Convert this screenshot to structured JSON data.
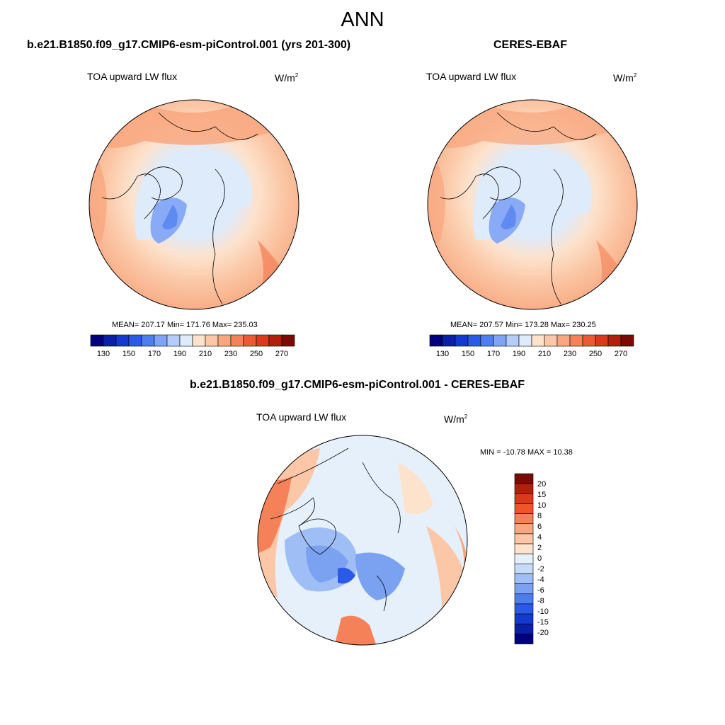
{
  "title": "ANN",
  "panels": [
    {
      "title": "b.e21.B1850.f09_g17.CMIP6-esm-piControl.001 (yrs 201-300)",
      "variable": "TOA upward LW flux",
      "units_base": "W/m",
      "units_exp": "2",
      "stats": "MEAN= 207.17  Min= 171.76  Max= 235.03"
    },
    {
      "title": "CERES-EBAF",
      "variable": "TOA upward LW flux",
      "units_base": "W/m",
      "units_exp": "2",
      "stats": "MEAN= 207.57  Min= 173.28  Max= 230.25"
    }
  ],
  "diff": {
    "title": "b.e21.B1850.f09_g17.CMIP6-esm-piControl.001 - CERES-EBAF",
    "variable": "TOA upward LW flux",
    "units_base": "W/m",
    "units_exp": "2",
    "stats": "MIN = -10.78 MAX =  10.38"
  },
  "colorbar_abs": {
    "colors": [
      "#00007f",
      "#0a1fa8",
      "#1439d1",
      "#2a5ae8",
      "#4d7ef0",
      "#7fa3f5",
      "#b4cdf8",
      "#deebfb",
      "#fde2cc",
      "#fbc7a6",
      "#f8a77f",
      "#f48158",
      "#ec5a34",
      "#d83a1a",
      "#b0200b",
      "#7a0a03"
    ],
    "tick_labels": [
      "130",
      "150",
      "170",
      "190",
      "210",
      "230",
      "250",
      "270"
    ]
  },
  "colorbar_diff": {
    "colors": [
      "#7a0a03",
      "#b0200b",
      "#d83a1a",
      "#f0552a",
      "#f48158",
      "#f8a77f",
      "#fbc7a6",
      "#fde2cc",
      "#e6f0fb",
      "#c5dbf8",
      "#9ebef5",
      "#7ba1f1",
      "#4d7ef0",
      "#2a5ae8",
      "#1439d1",
      "#0a1fa8",
      "#00007f"
    ],
    "tick_labels": [
      "20",
      "15",
      "10",
      "8",
      "6",
      "4",
      "2",
      "0",
      "-2",
      "-4",
      "-6",
      "-8",
      "-10",
      "-15",
      "-20"
    ]
  }
}
